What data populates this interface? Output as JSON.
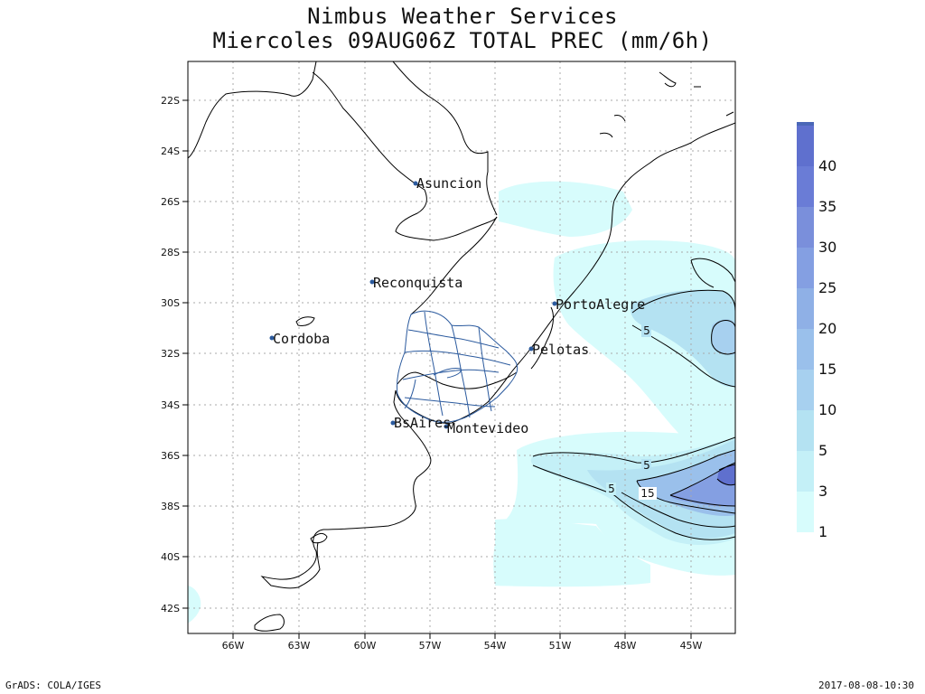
{
  "title": {
    "line1": "Nimbus Weather Services",
    "line2": "Miercoles 09AUG06Z TOTAL PREC (mm/6h)"
  },
  "footer": {
    "left": "GrADS: COLA/IGES",
    "right": "2017-08-08-10:30"
  },
  "axes": {
    "lon_labels": [
      "66W",
      "63W",
      "60W",
      "57W",
      "54W",
      "51W",
      "48W",
      "45W"
    ],
    "lat_labels": [
      "22S",
      "24S",
      "26S",
      "28S",
      "30S",
      "32S",
      "34S",
      "36S",
      "38S",
      "40S",
      "42S"
    ],
    "grid": "dotted"
  },
  "cities": [
    {
      "name": "Asuncion",
      "lon": -57.6,
      "lat": -25.3
    },
    {
      "name": "Reconquista",
      "lon": -59.7,
      "lat": -29.2
    },
    {
      "name": "PortoAlegre",
      "lon": -51.2,
      "lat": -30.0
    },
    {
      "name": "Cordoba",
      "lon": -64.2,
      "lat": -31.4
    },
    {
      "name": "Pelotas",
      "lon": -52.3,
      "lat": -31.8
    },
    {
      "name": "BsAires",
      "lon": -58.4,
      "lat": -34.6
    },
    {
      "name": "Montevideo",
      "lon": -56.2,
      "lat": -34.9
    }
  ],
  "contour_labels": [
    {
      "text": "5",
      "lon": -47.1,
      "lat": -31.1
    },
    {
      "text": "5",
      "lon": -47.1,
      "lat": -36.4
    },
    {
      "text": "5",
      "lon": -48.6,
      "lat": -37.3
    },
    {
      "text": "15",
      "lon": -47.0,
      "lat": -37.5
    }
  ],
  "legend": {
    "labels": [
      "1",
      "3",
      "5",
      "10",
      "15",
      "20",
      "25",
      "30",
      "35",
      "40"
    ],
    "colors": [
      "#d7fcfc",
      "#c4f0f7",
      "#b4e2f2",
      "#a7d0ef",
      "#9ac0eb",
      "#8fb0e6",
      "#849fe2",
      "#7a8fdb",
      "#6a7cd6",
      "#5f70ce",
      "#4a67b7"
    ]
  }
}
